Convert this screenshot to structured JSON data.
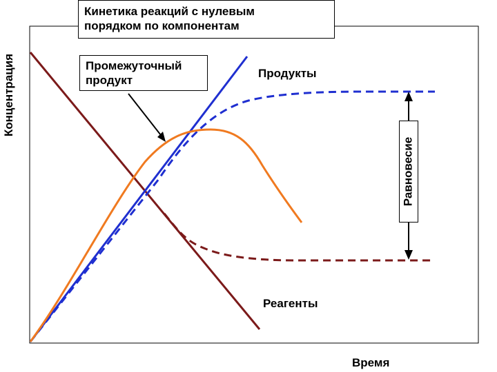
{
  "title_lines": [
    "Кинетика реакций с нулевым",
    "порядком по компонентам"
  ],
  "y_axis_label": "Концентрация",
  "x_axis_label": "Время",
  "labels": {
    "intermediate_line1": "Промежуточный",
    "intermediate_line2": "продукт",
    "products": "Продукты",
    "reagents": "Реагенты",
    "equilibrium": "Равновесие"
  },
  "colors": {
    "reagent": "#7b1a1a",
    "product": "#1f2fd0",
    "intermediate": "#f07a20",
    "frame": "#000000"
  }
}
